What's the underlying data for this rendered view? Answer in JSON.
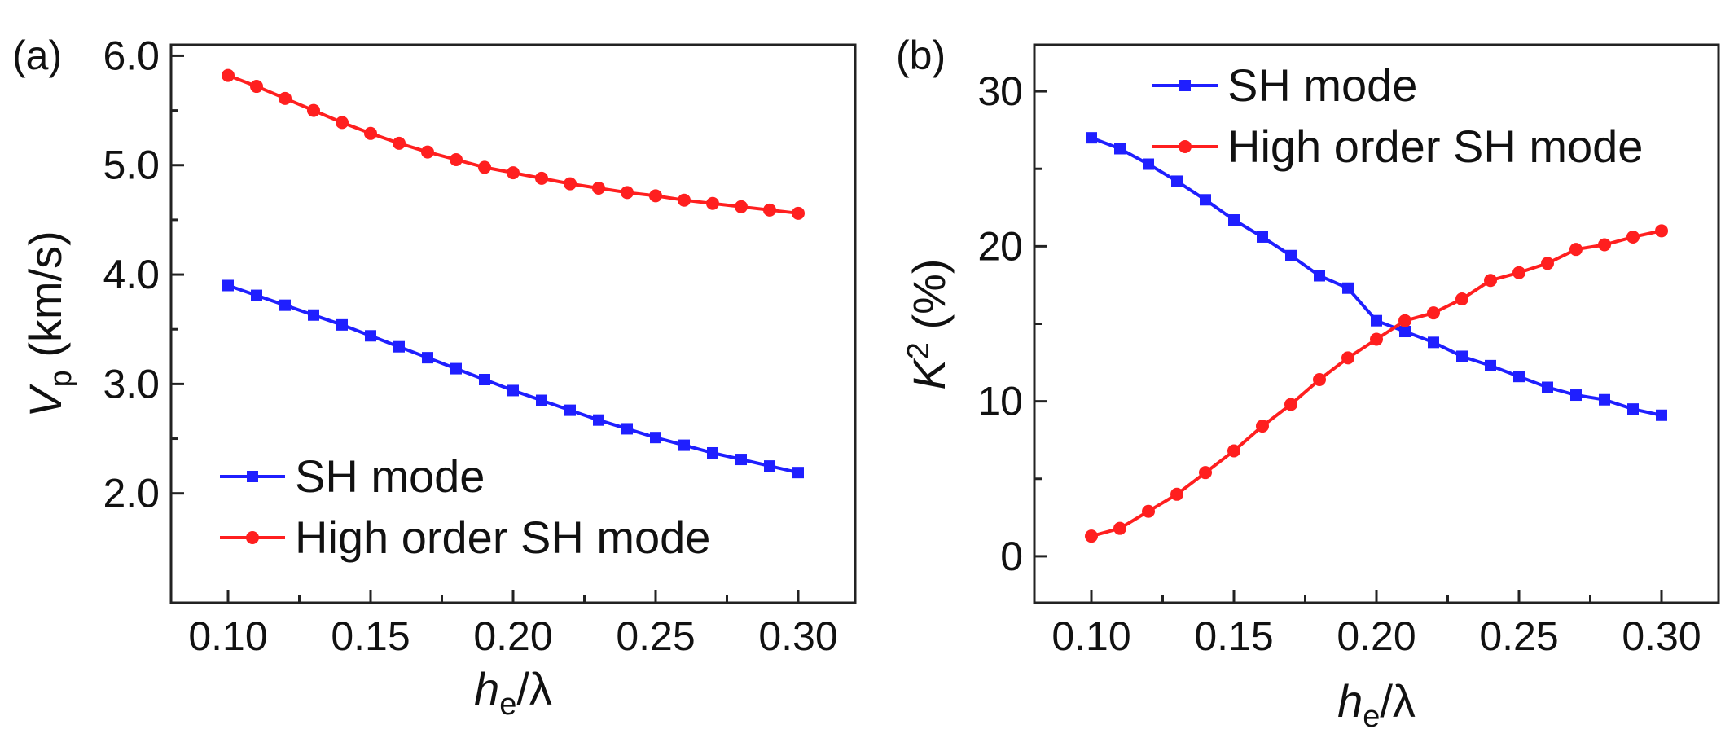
{
  "chart_data": [
    {
      "panel_label": "(a)",
      "type": "line",
      "xlabel": {
        "main": "h",
        "sub": "e",
        "rest": "/λ"
      },
      "ylabel": {
        "main": "V",
        "sub": "p",
        "rest": " (km/s)"
      },
      "xlim": [
        0.08,
        0.32
      ],
      "ylim": [
        1.0,
        6.1
      ],
      "xticks": [
        0.1,
        0.15,
        0.2,
        0.25,
        0.3
      ],
      "xtick_labels": [
        "0.10",
        "0.15",
        "0.20",
        "0.25",
        "0.30"
      ],
      "yticks": [
        2.0,
        3.0,
        4.0,
        5.0,
        6.0
      ],
      "ytick_labels": [
        "2.0",
        "3.0",
        "4.0",
        "5.0",
        "6.0"
      ],
      "legend_position": "bottom-left",
      "x": [
        0.1,
        0.11,
        0.12,
        0.13,
        0.14,
        0.15,
        0.16,
        0.17,
        0.18,
        0.19,
        0.2,
        0.21,
        0.22,
        0.23,
        0.24,
        0.25,
        0.26,
        0.27,
        0.28,
        0.29,
        0.3
      ],
      "series": [
        {
          "name": "SH mode",
          "color": "#1f1fff",
          "marker": "square",
          "values": [
            3.9,
            3.81,
            3.72,
            3.63,
            3.54,
            3.44,
            3.34,
            3.24,
            3.14,
            3.04,
            2.94,
            2.85,
            2.76,
            2.67,
            2.59,
            2.51,
            2.44,
            2.37,
            2.31,
            2.25,
            2.19
          ]
        },
        {
          "name": "High order SH mode",
          "color": "#ff1f1f",
          "marker": "circle",
          "values": [
            5.82,
            5.72,
            5.61,
            5.5,
            5.39,
            5.29,
            5.2,
            5.12,
            5.05,
            4.98,
            4.93,
            4.88,
            4.83,
            4.79,
            4.75,
            4.72,
            4.68,
            4.65,
            4.62,
            4.59,
            4.56
          ]
        }
      ]
    },
    {
      "panel_label": "(b)",
      "type": "line",
      "xlabel": {
        "main": "h",
        "sub": "e",
        "rest": "/λ"
      },
      "ylabel": {
        "main": "K",
        "sup": "2",
        "rest": " (%)"
      },
      "xlim": [
        0.08,
        0.32
      ],
      "ylim": [
        -3,
        33
      ],
      "xticks": [
        0.1,
        0.15,
        0.2,
        0.25,
        0.3
      ],
      "xtick_labels": [
        "0.10",
        "0.15",
        "0.20",
        "0.25",
        "0.30"
      ],
      "yticks": [
        0,
        10,
        20,
        30
      ],
      "ytick_labels": [
        "0",
        "10",
        "20",
        "30"
      ],
      "legend_position": "top-right",
      "x": [
        0.1,
        0.11,
        0.12,
        0.13,
        0.14,
        0.15,
        0.16,
        0.17,
        0.18,
        0.19,
        0.2,
        0.21,
        0.22,
        0.23,
        0.24,
        0.25,
        0.26,
        0.27,
        0.28,
        0.29,
        0.3
      ],
      "series": [
        {
          "name": "SH mode",
          "color": "#1f1fff",
          "marker": "square",
          "values": [
            27.0,
            26.3,
            25.3,
            24.2,
            23.0,
            21.7,
            20.6,
            19.4,
            18.1,
            17.3,
            15.2,
            14.5,
            13.8,
            12.9,
            12.3,
            11.6,
            10.9,
            10.4,
            10.1,
            9.5,
            9.1
          ]
        },
        {
          "name": "High order SH mode",
          "color": "#ff1f1f",
          "marker": "circle",
          "values": [
            1.3,
            1.8,
            2.9,
            4.0,
            5.4,
            6.8,
            8.4,
            9.8,
            11.4,
            12.8,
            14.0,
            15.2,
            15.7,
            16.6,
            17.8,
            18.3,
            18.9,
            19.8,
            20.1,
            20.6,
            21.0
          ]
        }
      ]
    }
  ]
}
